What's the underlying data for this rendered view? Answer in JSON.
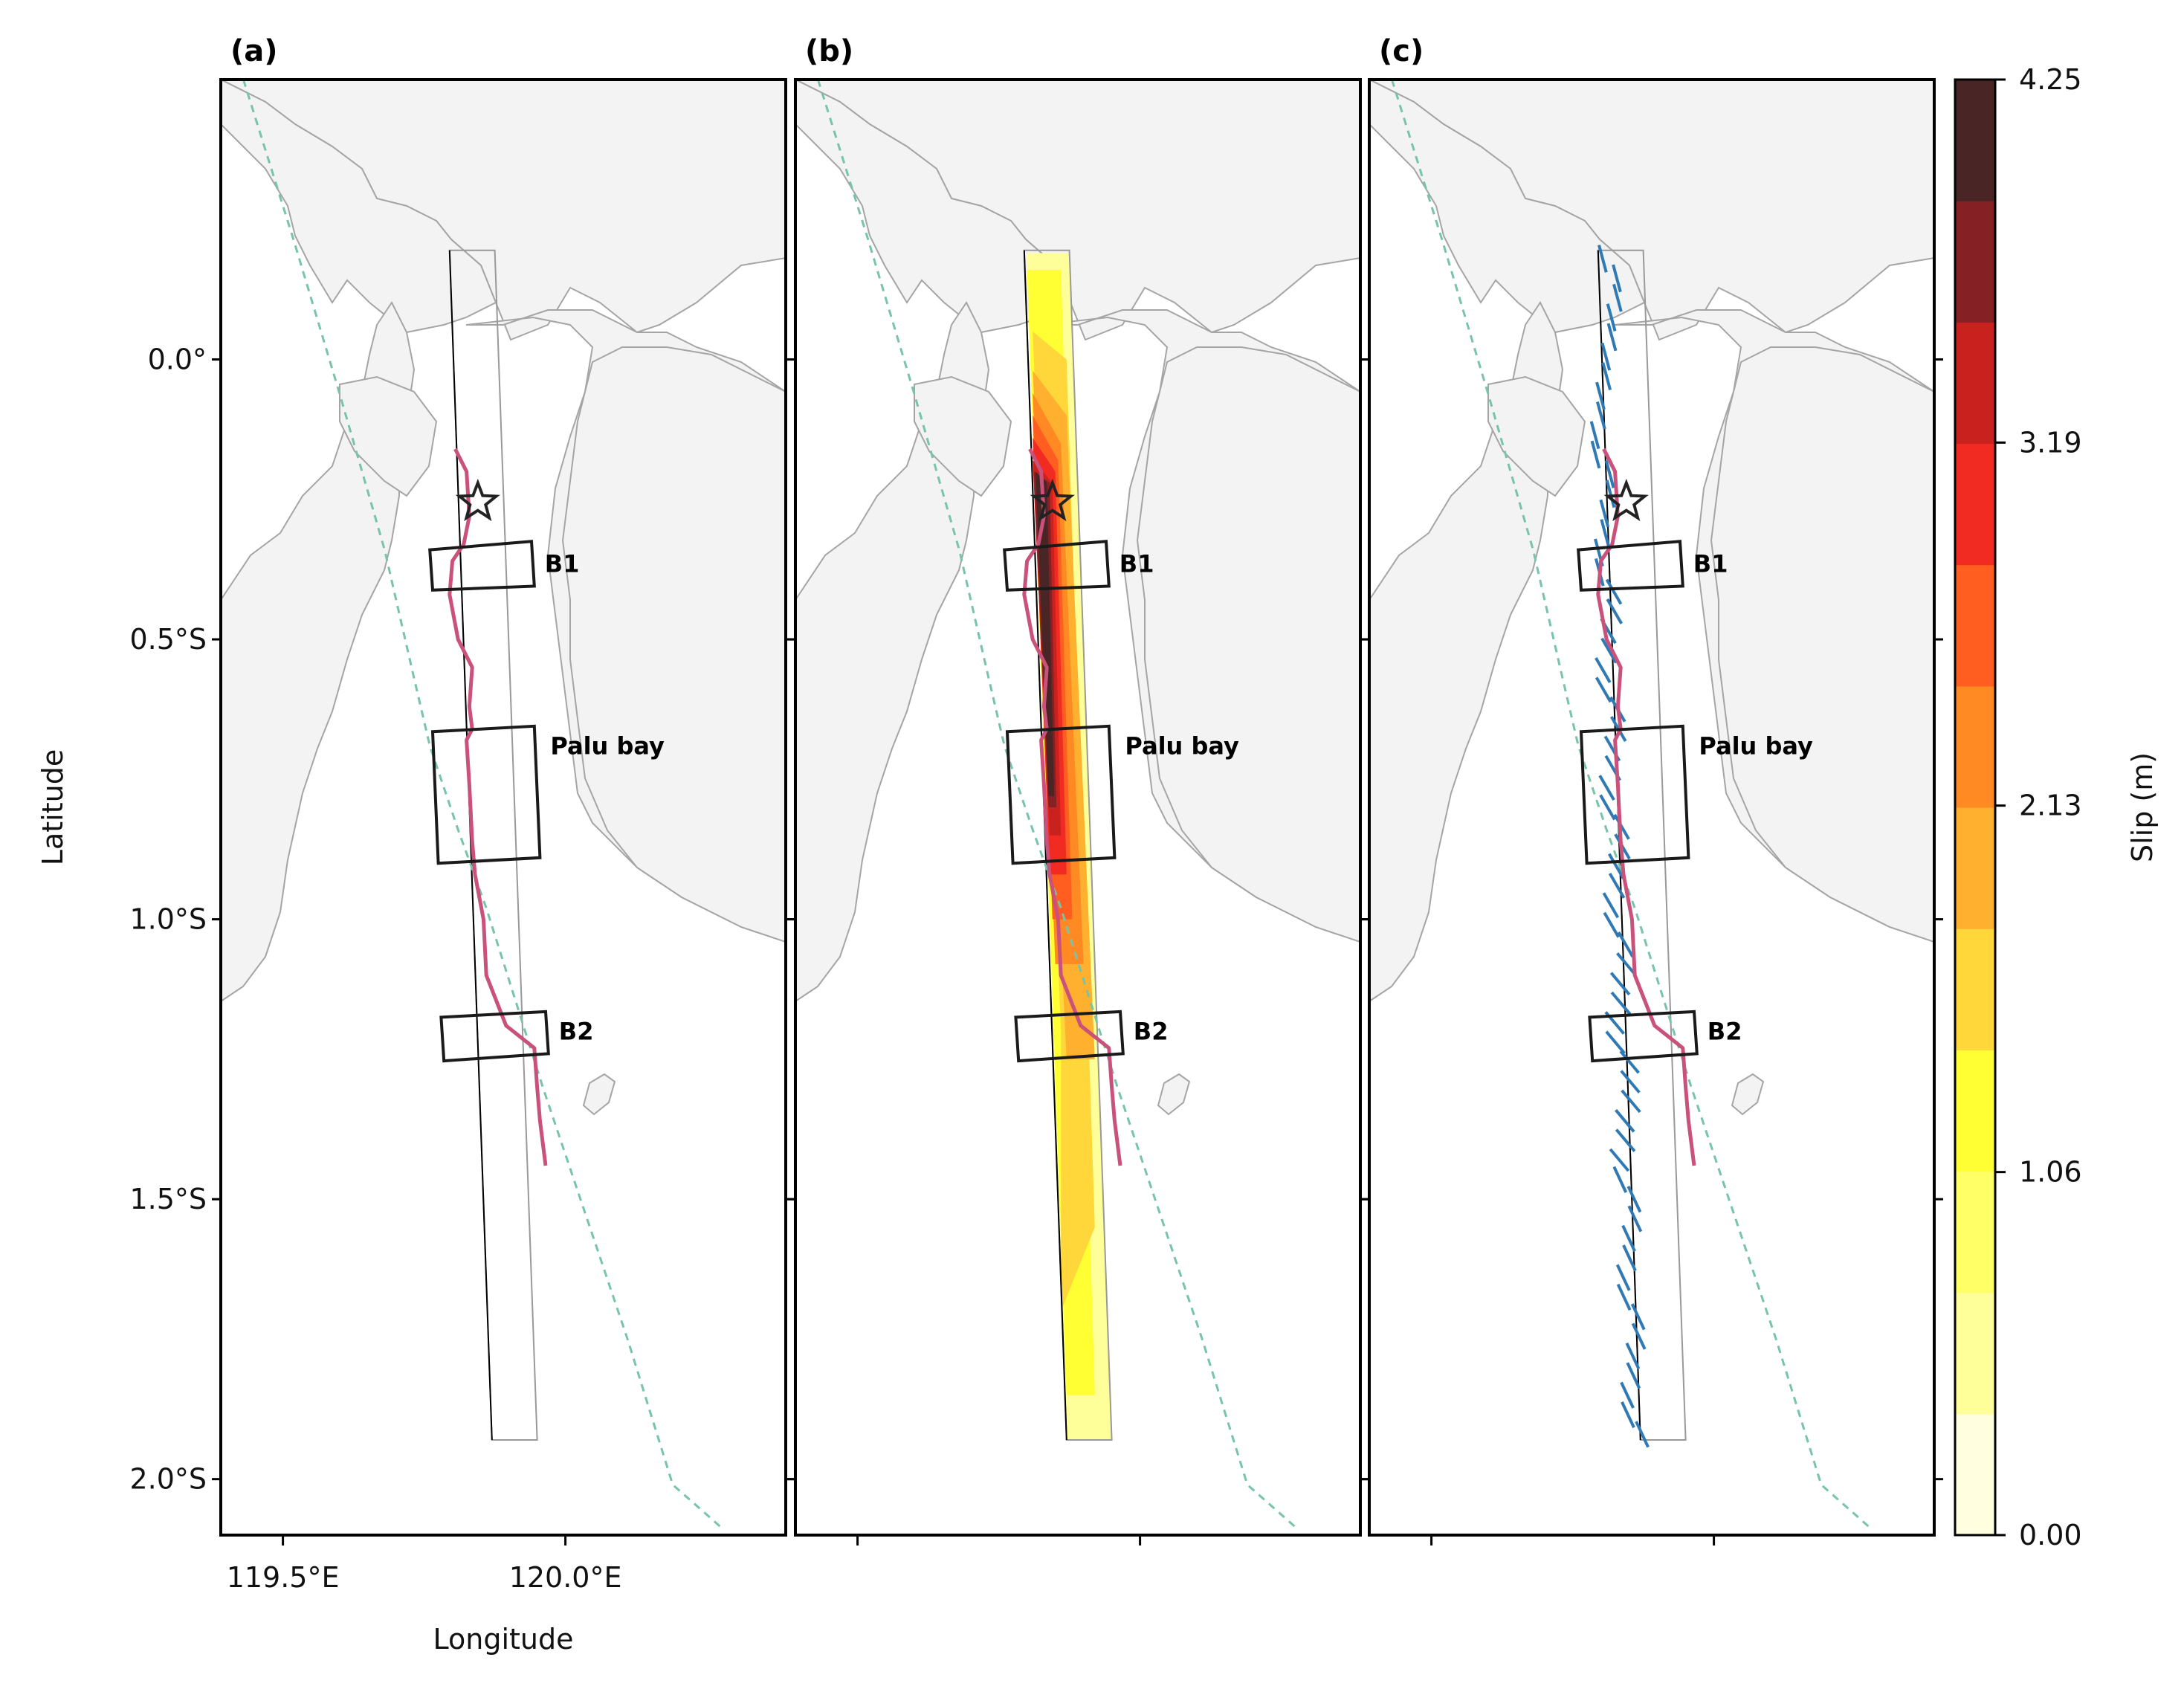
{
  "panels": [
    {
      "id": "a",
      "label": "(a)",
      "show_slip": false,
      "show_arrows": false
    },
    {
      "id": "b",
      "label": "(b)",
      "show_slip": true,
      "show_arrows": false
    },
    {
      "id": "c",
      "label": "(c)",
      "show_slip": false,
      "show_arrows": true
    }
  ],
  "axes": {
    "xlabel": "Longitude",
    "ylabel": "Latitude",
    "lon_range": [
      119.39,
      120.39
    ],
    "lat_range": [
      -2.1,
      0.5
    ],
    "xticks": [
      {
        "value": 119.5,
        "label": "119.5°E"
      },
      {
        "value": 120.0,
        "label": "120.0°E"
      }
    ],
    "yticks": [
      {
        "value": 0.0,
        "label": "0.0°"
      },
      {
        "value": -0.5,
        "label": "0.5°S"
      },
      {
        "value": -1.0,
        "label": "1.0°S"
      },
      {
        "value": -1.5,
        "label": "1.5°S"
      },
      {
        "value": -2.0,
        "label": "2.0°S"
      }
    ]
  },
  "regions": [
    {
      "name": "B1",
      "label": "B1",
      "corners": [
        [
          119.76,
          -0.34
        ],
        [
          119.94,
          -0.325
        ],
        [
          119.945,
          -0.405
        ],
        [
          119.765,
          -0.412
        ]
      ]
    },
    {
      "name": "Palu bay",
      "label": "Palu bay",
      "corners": [
        [
          119.765,
          -0.665
        ],
        [
          119.945,
          -0.655
        ],
        [
          119.955,
          -0.89
        ],
        [
          119.775,
          -0.9
        ]
      ]
    },
    {
      "name": "B2",
      "label": "B2",
      "corners": [
        [
          119.78,
          -1.175
        ],
        [
          119.965,
          -1.165
        ],
        [
          119.97,
          -1.24
        ],
        [
          119.785,
          -1.253
        ]
      ]
    }
  ],
  "epicenter": {
    "lon": 119.845,
    "lat": -0.255
  },
  "fault_plane": {
    "trace_top": [
      [
        119.795,
        0.195
      ],
      [
        119.87,
        -1.93
      ]
    ],
    "outline": [
      [
        119.795,
        0.195
      ],
      [
        119.875,
        0.195
      ],
      [
        119.95,
        -1.93
      ],
      [
        119.87,
        -1.93
      ]
    ]
  },
  "rupture_trace": [
    [
      119.805,
      -0.16
    ],
    [
      119.825,
      -0.2
    ],
    [
      119.83,
      -0.28
    ],
    [
      119.82,
      -0.33
    ],
    [
      119.8,
      -0.36
    ],
    [
      119.795,
      -0.42
    ],
    [
      119.81,
      -0.5
    ],
    [
      119.835,
      -0.55
    ],
    [
      119.83,
      -0.62
    ],
    [
      119.835,
      -0.66
    ],
    [
      119.825,
      -0.68
    ],
    [
      119.83,
      -0.76
    ],
    [
      119.835,
      -0.86
    ],
    [
      119.84,
      -0.92
    ],
    [
      119.855,
      -1.0
    ],
    [
      119.86,
      -1.1
    ],
    [
      119.895,
      -1.19
    ],
    [
      119.945,
      -1.23
    ],
    [
      119.95,
      -1.3
    ],
    [
      119.955,
      -1.36
    ],
    [
      119.965,
      -1.44
    ]
  ],
  "boundary_line": [
    [
      119.43,
      0.5
    ],
    [
      119.52,
      0.21
    ],
    [
      119.6,
      -0.06
    ],
    [
      119.68,
      -0.34
    ],
    [
      119.73,
      -0.56
    ],
    [
      119.76,
      -0.69
    ],
    [
      119.81,
      -0.84
    ],
    [
      119.86,
      -0.98
    ],
    [
      119.91,
      -1.14
    ],
    [
      119.96,
      -1.3
    ],
    [
      120.01,
      -1.45
    ],
    [
      120.06,
      -1.6
    ],
    [
      120.11,
      -1.75
    ],
    [
      120.15,
      -1.88
    ],
    [
      120.19,
      -2.01
    ],
    [
      120.28,
      -2.09
    ]
  ],
  "colorbar": {
    "label": "Slip (m)",
    "min": 0.0,
    "max": 4.25,
    "tick_labels": [
      "0.00",
      "1.06",
      "2.13",
      "3.19",
      "4.25"
    ],
    "colors": [
      "#ffffe0",
      "#ffff99",
      "#ffff66",
      "#ffff33",
      "#ffd73b",
      "#ffb02e",
      "#ff8a24",
      "#ff5e20",
      "#f22b22",
      "#c9221e",
      "#852124",
      "#4a2526"
    ]
  },
  "colors": {
    "land": "#f3f3f3",
    "coast": "#a5a5a5",
    "boundary": "#78c4a8",
    "rupture": "#c9517a",
    "arrows": "#2f7ab5",
    "frame": "#000000"
  }
}
